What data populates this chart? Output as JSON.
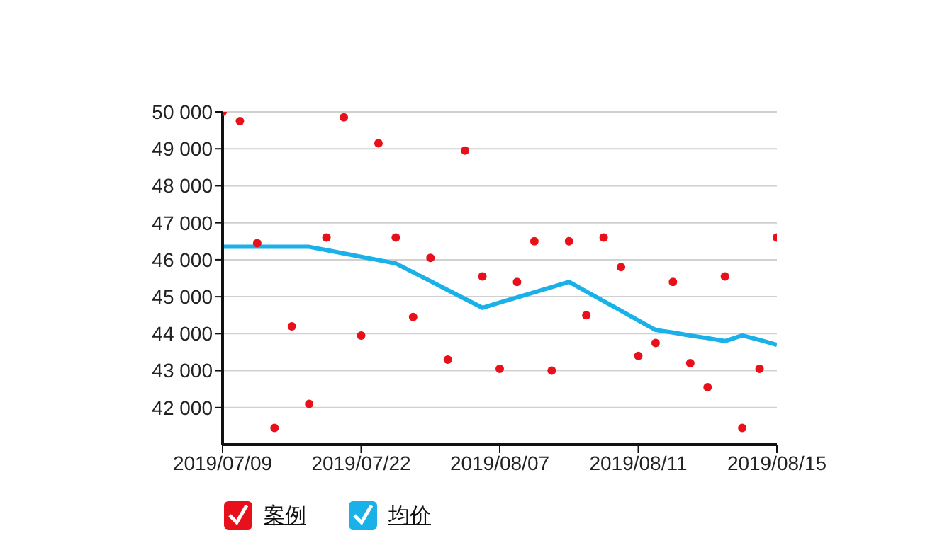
{
  "chart_data": {
    "type": "scatter",
    "categories": [
      "2019/07/09",
      null,
      null,
      null,
      null,
      null,
      null,
      null,
      "2019/07/22",
      null,
      null,
      null,
      null,
      null,
      null,
      null,
      "2019/08/07",
      null,
      null,
      null,
      null,
      null,
      null,
      null,
      "2019/08/11",
      null,
      null,
      null,
      null,
      null,
      null,
      null,
      "2019/08/15"
    ],
    "series": [
      {
        "name": "案例",
        "color": "#e8101a",
        "marker": "circle",
        "values": [
          50000,
          49750,
          46450,
          41450,
          44200,
          42100,
          46600,
          49850,
          43950,
          49150,
          46600,
          44450,
          46050,
          43300,
          48950,
          45550,
          43050,
          45400,
          46500,
          43000,
          46500,
          44500,
          46600,
          45800,
          43400,
          43750,
          45400,
          43200,
          42550,
          45550,
          41450,
          43050,
          46600
        ]
      },
      {
        "name": "均价",
        "type": "line",
        "color": "#1ab0e8",
        "marker": "none",
        "values": [
          46350,
          46350,
          46350,
          46350,
          46350,
          46350,
          46260,
          46170,
          46080,
          45990,
          45900,
          45660,
          45420,
          45180,
          44940,
          44700,
          44840,
          44980,
          45120,
          45260,
          45400,
          45140,
          44880,
          44620,
          44360,
          44100,
          44030,
          43950,
          43880,
          43800,
          43950,
          43830,
          43700
        ]
      }
    ],
    "ylim": [
      41000,
      50000
    ],
    "yticks": [
      {
        "value": 42000,
        "label": "42 000"
      },
      {
        "value": 43000,
        "label": "43 000"
      },
      {
        "value": 44000,
        "label": "44 000"
      },
      {
        "value": 45000,
        "label": "45 000"
      },
      {
        "value": 46000,
        "label": "46 000"
      },
      {
        "value": 47000,
        "label": "47 000"
      },
      {
        "value": 48000,
        "label": "48 000"
      },
      {
        "value": 49000,
        "label": "49 000"
      },
      {
        "value": 50000,
        "label": "50 000"
      }
    ],
    "grid": "y",
    "legend": "bottom"
  }
}
